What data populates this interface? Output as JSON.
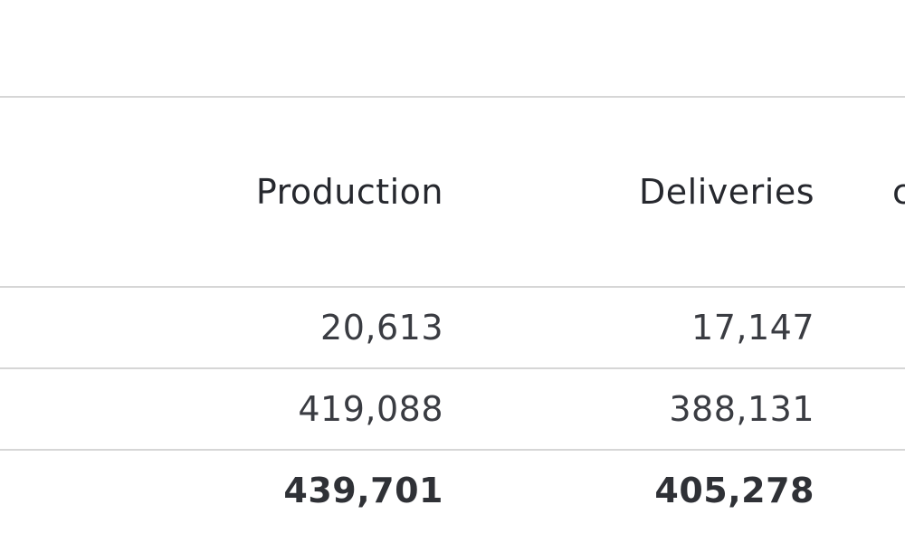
{
  "table": {
    "headers": {
      "production": "Production",
      "deliveries": "Deliveries",
      "next_clipped": "c"
    },
    "rows": [
      {
        "production": "20,613",
        "deliveries": "17,147",
        "bold": false
      },
      {
        "production": "419,088",
        "deliveries": "388,131",
        "bold": false
      },
      {
        "production": "439,701",
        "deliveries": "405,278",
        "bold": true
      }
    ]
  },
  "colors": {
    "text": "#2b2d33",
    "rule": "#d6d6d6",
    "background": "#ffffff"
  }
}
